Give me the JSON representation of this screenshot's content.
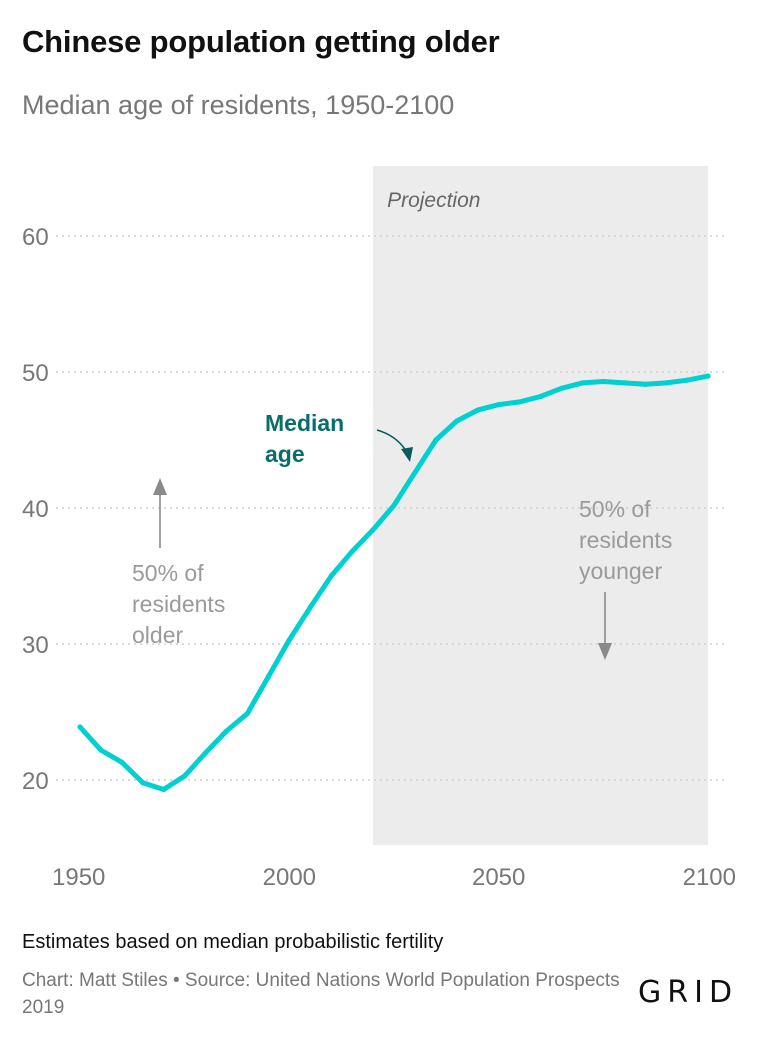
{
  "header": {
    "title": "Chinese population getting older",
    "subtitle": "Median age of residents, 1950-2100"
  },
  "chart_data": {
    "type": "line",
    "title": "Chinese population getting older",
    "subtitle": "Median age of residents, 1950-2100",
    "xlabel": "",
    "ylabel": "",
    "xlim": [
      1950,
      2100
    ],
    "ylim": [
      15,
      63
    ],
    "x_ticks": [
      1950,
      2000,
      2050,
      2100
    ],
    "y_ticks": [
      20,
      30,
      40,
      50,
      60
    ],
    "grid": "horizontal dotted",
    "projection_region": {
      "label": "Projection",
      "start": 2020,
      "end": 2100,
      "color": "#ececec"
    },
    "series": [
      {
        "name": "Median age",
        "color": "#00d0d0",
        "x": [
          1950,
          1955,
          1960,
          1965,
          1970,
          1975,
          1980,
          1985,
          1990,
          1995,
          2000,
          2005,
          2010,
          2015,
          2020,
          2025,
          2030,
          2035,
          2040,
          2045,
          2050,
          2055,
          2060,
          2065,
          2070,
          2075,
          2080,
          2085,
          2090,
          2095,
          2100
        ],
        "values": [
          23.9,
          22.2,
          21.3,
          19.8,
          19.3,
          20.3,
          22.0,
          23.6,
          24.9,
          27.6,
          30.3,
          32.7,
          35.0,
          36.8,
          38.4,
          40.2,
          42.6,
          45.0,
          46.4,
          47.2,
          47.6,
          47.8,
          48.2,
          48.8,
          49.2,
          49.3,
          49.2,
          49.1,
          49.2,
          49.4,
          49.7
        ]
      }
    ],
    "annotations": {
      "series_label": "Median age",
      "upper": "50% of residents older",
      "lower": "50% of residents younger"
    }
  },
  "footer": {
    "note": "Estimates based on median probabilistic fertility",
    "credit": "Chart: Matt Stiles • Source: United Nations World Population Prospects 2019",
    "logo": "GRID"
  },
  "colors": {
    "line": "#00d0d0",
    "label_teal": "#0a6d6d",
    "projection_bg": "#ececec",
    "axis_text": "#777777",
    "grid": "#cfcfcf"
  }
}
